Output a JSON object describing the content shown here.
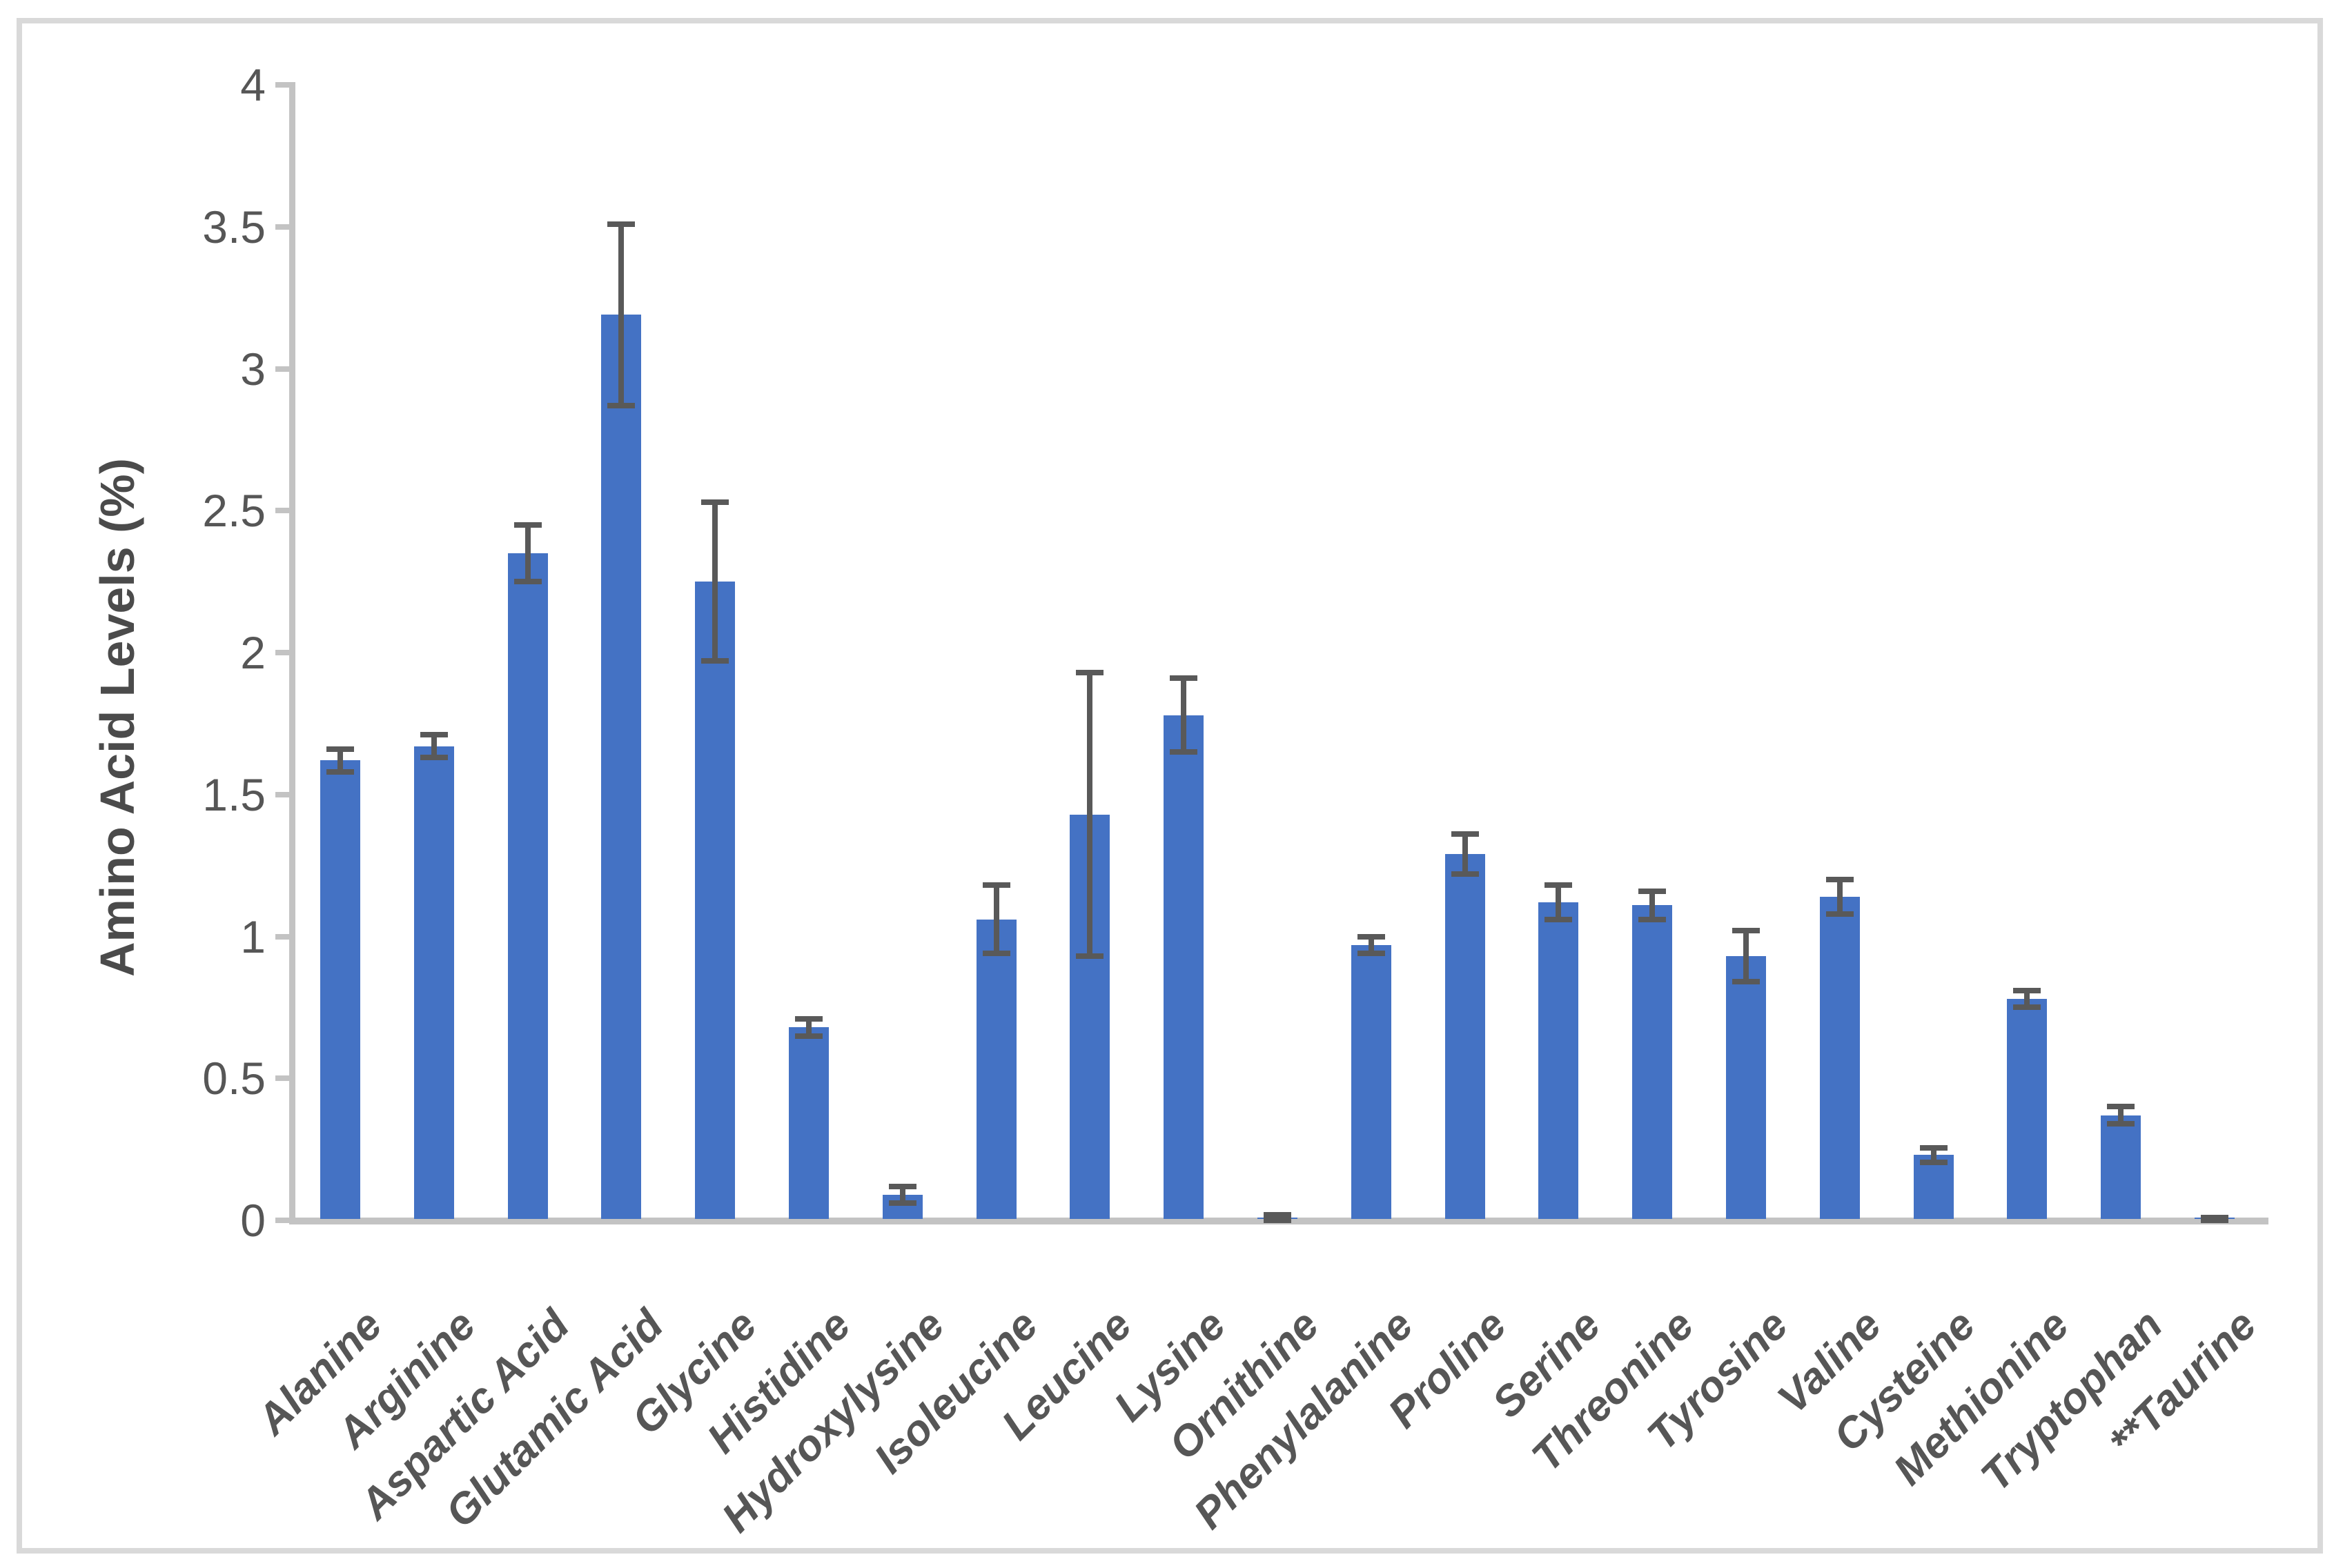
{
  "chart_data": {
    "type": "bar",
    "title": "",
    "xlabel": "",
    "ylabel": "Amino Acid Levels (%)",
    "ylim": [
      0,
      4
    ],
    "grid": false,
    "legend": false,
    "yticks": [
      {
        "value": 0,
        "label": "0"
      },
      {
        "value": 0.5,
        "label": "0.5"
      },
      {
        "value": 1,
        "label": "1"
      },
      {
        "value": 1.5,
        "label": "1.5"
      },
      {
        "value": 2,
        "label": "2"
      },
      {
        "value": 2.5,
        "label": "2.5"
      },
      {
        "value": 3,
        "label": "3"
      },
      {
        "value": 3.5,
        "label": "3.5"
      },
      {
        "value": 4,
        "label": "4"
      }
    ],
    "categories": [
      "Alanine",
      "Arginine",
      "Aspartic Acid",
      "Glutamic Acid",
      "Glycine",
      "Histidine",
      "Hydroxylysine",
      "Isoleucine",
      "Leucine",
      "Lysine",
      "Ornithine",
      "Phenylalanine",
      "Proline",
      "Serine",
      "Threonine",
      "Tyrosine",
      "Valine",
      "Cysteine",
      "Methionine",
      "Tryptophan",
      "**Taurine"
    ],
    "series": [
      {
        "name": "Amino Acid Levels (%)",
        "values": [
          1.62,
          1.67,
          2.35,
          3.19,
          2.25,
          0.68,
          0.09,
          1.06,
          1.43,
          1.78,
          0.01,
          0.97,
          1.29,
          1.12,
          1.11,
          0.93,
          1.14,
          0.23,
          0.78,
          0.37,
          0.005
        ],
        "errors": [
          0.04,
          0.04,
          0.1,
          0.32,
          0.28,
          0.03,
          0.03,
          0.12,
          0.5,
          0.13,
          0.01,
          0.03,
          0.07,
          0.06,
          0.05,
          0.09,
          0.06,
          0.025,
          0.03,
          0.03,
          0.005
        ]
      }
    ],
    "colors": {
      "bar_fill": "#4472c4",
      "error_bar": "#595959",
      "axis_line": "#c3c3c3",
      "tick_text": "#565656",
      "axis_title_text": "#4b4b4b",
      "frame_border": "#d9d9d9",
      "background": "#ffffff"
    }
  }
}
